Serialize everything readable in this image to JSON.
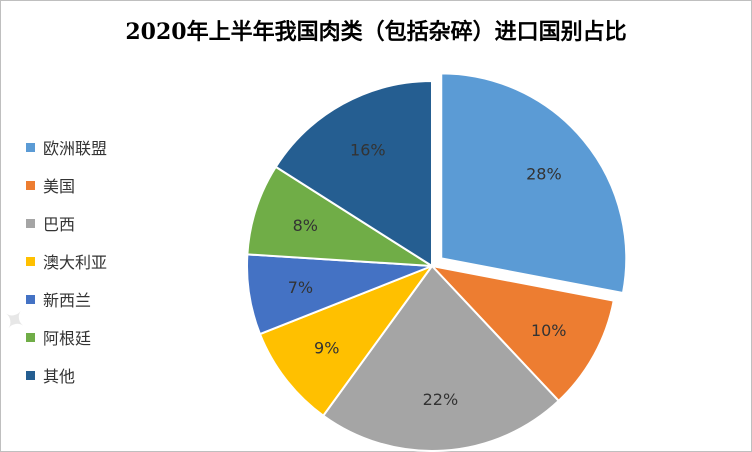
{
  "chart_data": {
    "type": "pie",
    "title": "2020年上半年我国肉类（包括杂碎）进口国别占比",
    "categories": [
      "欧洲联盟",
      "美国",
      "巴西",
      "澳大利亚",
      "新西兰",
      "阿根廷",
      "其他"
    ],
    "values": [
      28,
      10,
      22,
      9,
      7,
      8,
      16
    ],
    "value_labels": [
      "28%",
      "10%",
      "22%",
      "9%",
      "7%",
      "8%",
      "16%"
    ],
    "colors": [
      "#5b9bd5",
      "#ed7d31",
      "#a5a5a5",
      "#ffc000",
      "#4472c4",
      "#70ad47",
      "#255e91"
    ],
    "exploded": [
      true,
      false,
      false,
      false,
      false,
      false,
      false
    ],
    "legend_position": "left",
    "start_angle": "12 o'clock, clockwise"
  }
}
